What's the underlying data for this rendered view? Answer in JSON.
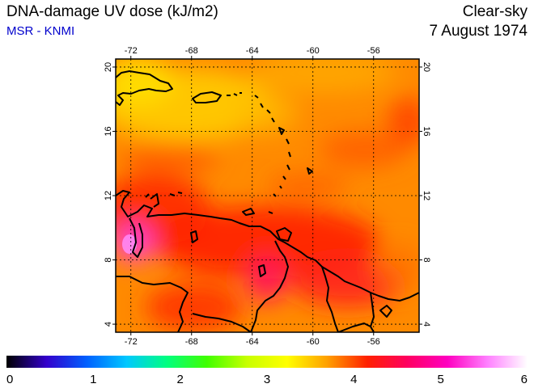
{
  "header": {
    "title": "DNA-damage UV dose (kJ/m2)",
    "source": "MSR - KNMI",
    "sky_condition": "Clear-sky",
    "date": "7 August 1974"
  },
  "map": {
    "lon_range": [
      -73,
      -53
    ],
    "lat_range": [
      3.5,
      20.5
    ],
    "lon_ticks": [
      -72,
      -68,
      -64,
      -60,
      -56
    ],
    "lat_ticks": [
      4,
      8,
      12,
      16,
      20
    ],
    "grid": true,
    "field_colors": {
      "orange": "#ff8c00",
      "red_orange": "#ff5000",
      "red": "#ff2000",
      "yellow": "#ffe000",
      "magenta": "#ff30c0",
      "pink": "#ff90ff",
      "land": "#000000"
    }
  },
  "colorbar": {
    "min": 0,
    "max": 6,
    "ticks": [
      "0",
      "1",
      "2",
      "3",
      "4",
      "5",
      "6"
    ],
    "stops": [
      "#000000",
      "#3300cc",
      "#0060ff",
      "#00c8ff",
      "#00ff80",
      "#40ff00",
      "#c8ff00",
      "#ffff00",
      "#ffa000",
      "#ff2000",
      "#ff0060",
      "#ff00c0",
      "#ff80ff",
      "#ffffff"
    ]
  }
}
